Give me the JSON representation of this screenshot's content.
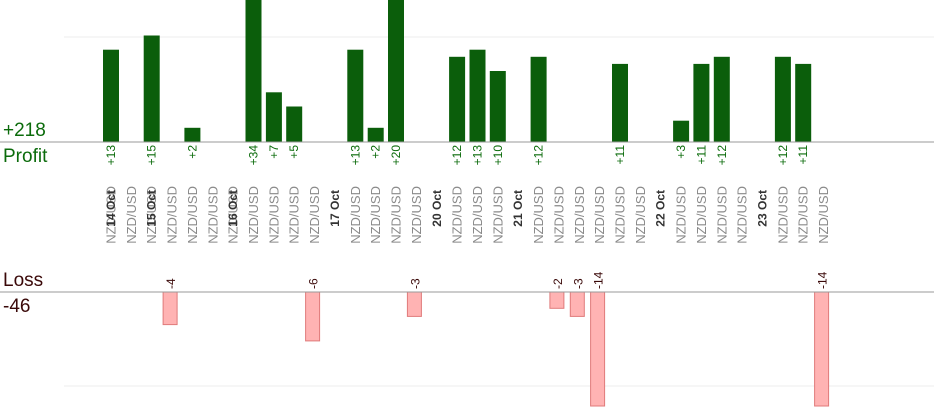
{
  "summary": {
    "profit_total": "+218",
    "profit_label": "Profit",
    "loss_label": "Loss",
    "loss_total": "-46"
  },
  "colors": {
    "profit_bar": "#0b5e0b",
    "profit_label": "#0b6b0b",
    "loss_bar": "#ffb3b3",
    "loss_bar_stroke": "#e07a7a",
    "loss_label": "#3a0808",
    "axis": "#999999",
    "grid": "#ececec",
    "date_text": "#333333",
    "pair_text": "#8a8a8a"
  },
  "chart_data": {
    "type": "bar",
    "profit_axis_max": 20,
    "loss_axis_max": 14,
    "categories": [
      {
        "date": "14 Oct",
        "pair": "NZD/USD",
        "profit": 13,
        "profit_label": "+13"
      },
      {
        "date": "",
        "pair": "NZD/USD"
      },
      {
        "date": "15 Oct",
        "pair": "NZD/USD",
        "profit": 15,
        "profit_label": "+15"
      },
      {
        "date": "",
        "pair": "NZD/USD",
        "loss": 4,
        "loss_label": "-4"
      },
      {
        "date": "",
        "pair": "NZD/USD",
        "profit": 2,
        "profit_label": "+2"
      },
      {
        "date": "",
        "pair": "NZD/USD"
      },
      {
        "date": "16 Oct",
        "pair": "NZD/USD"
      },
      {
        "date": "",
        "pair": "NZD/USD",
        "profit": 34,
        "profit_label": "+34"
      },
      {
        "date": "",
        "pair": "NZD/USD",
        "profit": 7,
        "profit_label": "+7"
      },
      {
        "date": "",
        "pair": "NZD/USD",
        "profit": 5,
        "profit_label": "+5"
      },
      {
        "date": "",
        "pair": "NZD/USD",
        "loss": 6,
        "loss_label": "-6"
      },
      {
        "date": "17 Oct",
        "pair": ""
      },
      {
        "date": "",
        "pair": "NZD/USD",
        "profit": 13,
        "profit_label": "+13"
      },
      {
        "date": "",
        "pair": "NZD/USD",
        "profit": 2,
        "profit_label": "+2"
      },
      {
        "date": "",
        "pair": "NZD/USD",
        "profit": 20,
        "profit_label": "+20"
      },
      {
        "date": "",
        "pair": "NZD/USD",
        "loss": 3,
        "loss_label": "-3"
      },
      {
        "date": "20 Oct",
        "pair": ""
      },
      {
        "date": "",
        "pair": "NZD/USD",
        "profit": 12,
        "profit_label": "+12"
      },
      {
        "date": "",
        "pair": "NZD/USD",
        "profit": 13,
        "profit_label": "+13"
      },
      {
        "date": "",
        "pair": "NZD/USD",
        "profit": 10,
        "profit_label": "+10"
      },
      {
        "date": "21 Oct",
        "pair": ""
      },
      {
        "date": "",
        "pair": "NZD/USD",
        "profit": 12,
        "profit_label": "+12"
      },
      {
        "date": "",
        "pair": "NZD/USD",
        "loss": 2,
        "loss_label": "-2"
      },
      {
        "date": "",
        "pair": "NZD/USD",
        "loss": 3,
        "loss_label": "-3"
      },
      {
        "date": "",
        "pair": "NZD/USD",
        "loss": 14,
        "loss_label": "-14"
      },
      {
        "date": "",
        "pair": "NZD/USD",
        "profit": 11,
        "profit_label": "+11"
      },
      {
        "date": "",
        "pair": "NZD/USD"
      },
      {
        "date": "22 Oct",
        "pair": ""
      },
      {
        "date": "",
        "pair": "NZD/USD",
        "profit": 3,
        "profit_label": "+3"
      },
      {
        "date": "",
        "pair": "NZD/USD",
        "profit": 11,
        "profit_label": "+11"
      },
      {
        "date": "",
        "pair": "NZD/USD",
        "profit": 12,
        "profit_label": "+12"
      },
      {
        "date": "",
        "pair": "NZD/USD"
      },
      {
        "date": "23 Oct",
        "pair": ""
      },
      {
        "date": "",
        "pair": "NZD/USD",
        "profit": 12,
        "profit_label": "+12"
      },
      {
        "date": "",
        "pair": "NZD/USD",
        "profit": 11,
        "profit_label": "+11"
      },
      {
        "date": "",
        "pair": "NZD/USD",
        "loss": 14,
        "loss_label": "-14"
      }
    ]
  }
}
